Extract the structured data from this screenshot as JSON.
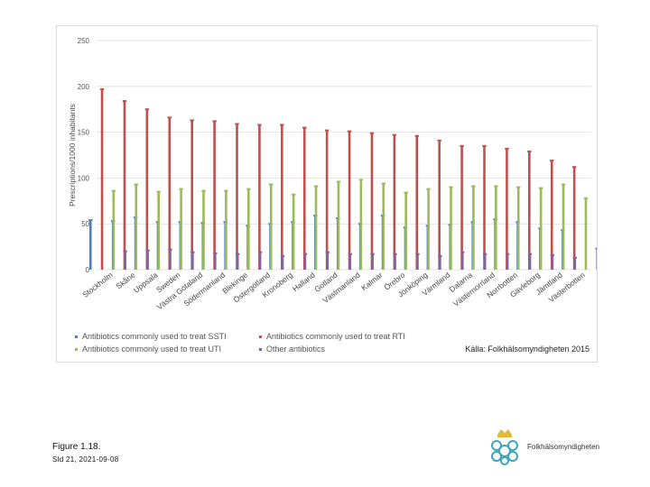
{
  "chart_data": {
    "type": "bar",
    "title": "",
    "xlabel": "",
    "ylabel": "Prescriptions/1000 inhabitants",
    "ylim": [
      0,
      250
    ],
    "yticks": [
      0,
      50,
      100,
      150,
      200,
      250
    ],
    "grid": true,
    "categories": [
      "Stockholm",
      "Skåne",
      "Uppsala",
      "Sweden",
      "Västra Götaland",
      "Södermanland",
      "Blekinge",
      "Östergötland",
      "Kronoberg",
      "Halland",
      "Gotland",
      "Västmanland",
      "Kalmar",
      "Örebro",
      "Jönköping",
      "Värmland",
      "Dalarna",
      "Västernorrland",
      "Norrbotten",
      "Gävleborg",
      "Jämtland",
      "Västerbotten"
    ],
    "series": [
      {
        "name": "Antibiotics commonly used to treat SSTI",
        "color": "#4f81bd",
        "values": [
          54,
          53,
          57,
          52,
          52,
          51,
          52,
          48,
          50,
          52,
          59,
          56,
          50,
          59,
          46,
          48,
          49,
          52,
          55,
          52,
          45,
          43
        ]
      },
      {
        "name": "Antibiotics commonly used to treat RTI",
        "color": "#c0504d",
        "values": [
          197,
          184,
          175,
          166,
          163,
          162,
          159,
          158,
          158,
          155,
          152,
          151,
          149,
          147,
          146,
          141,
          135,
          135,
          132,
          129,
          119,
          112
        ]
      },
      {
        "name": "Antibiotics commonly used to treat UTI",
        "color": "#9bbb59",
        "values": [
          86,
          93,
          85,
          88,
          86,
          86,
          88,
          93,
          82,
          91,
          96,
          98,
          94,
          84,
          88,
          90,
          91,
          91,
          90,
          89,
          93,
          78
        ]
      },
      {
        "name": "Other antibiotics",
        "color": "#8064a2",
        "values": [
          20,
          21,
          22,
          19,
          18,
          17,
          19,
          15,
          17,
          19,
          17,
          17,
          17,
          17,
          15,
          19,
          17,
          17,
          17,
          16,
          13,
          23
        ]
      }
    ]
  },
  "source": "Källa: Folkhälsomyndigheten 2015",
  "footer": {
    "figure_title": "Figure 1.18.",
    "slide_ref": "Sld 21, 2021-09-08",
    "logo_text": "Folkhälsomyndigheten"
  }
}
